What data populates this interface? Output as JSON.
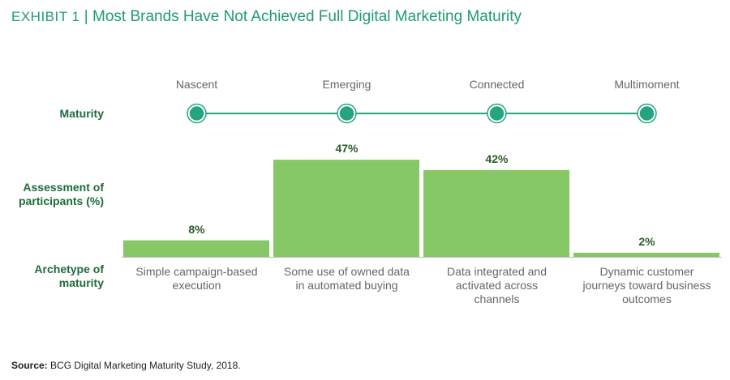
{
  "exhibit": "EXHIBIT 1",
  "title": "Most Brands Have Not Achieved Full Digital Marketing Maturity",
  "source_label": "Source:",
  "source": "BCG Digital Marketing Maturity Study, 2018.",
  "chart_data": {
    "type": "bar",
    "row_labels": [
      "Maturity",
      "Assessment of participants (%)",
      "Archetype of maturity"
    ],
    "stages": [
      "Nascent",
      "Emerging",
      "Connected",
      "Multimoment"
    ],
    "categories": [
      "Simple campaign-based execution",
      "Some use of owned data in automated buying",
      "Data integrated and activated across channels",
      "Dynamic customer journeys toward business outcomes"
    ],
    "values": [
      8,
      47,
      42,
      2
    ],
    "value_labels": [
      "8%",
      "47%",
      "42%",
      "2%"
    ],
    "color": "#86c766",
    "stage_color": "#25a57f"
  }
}
